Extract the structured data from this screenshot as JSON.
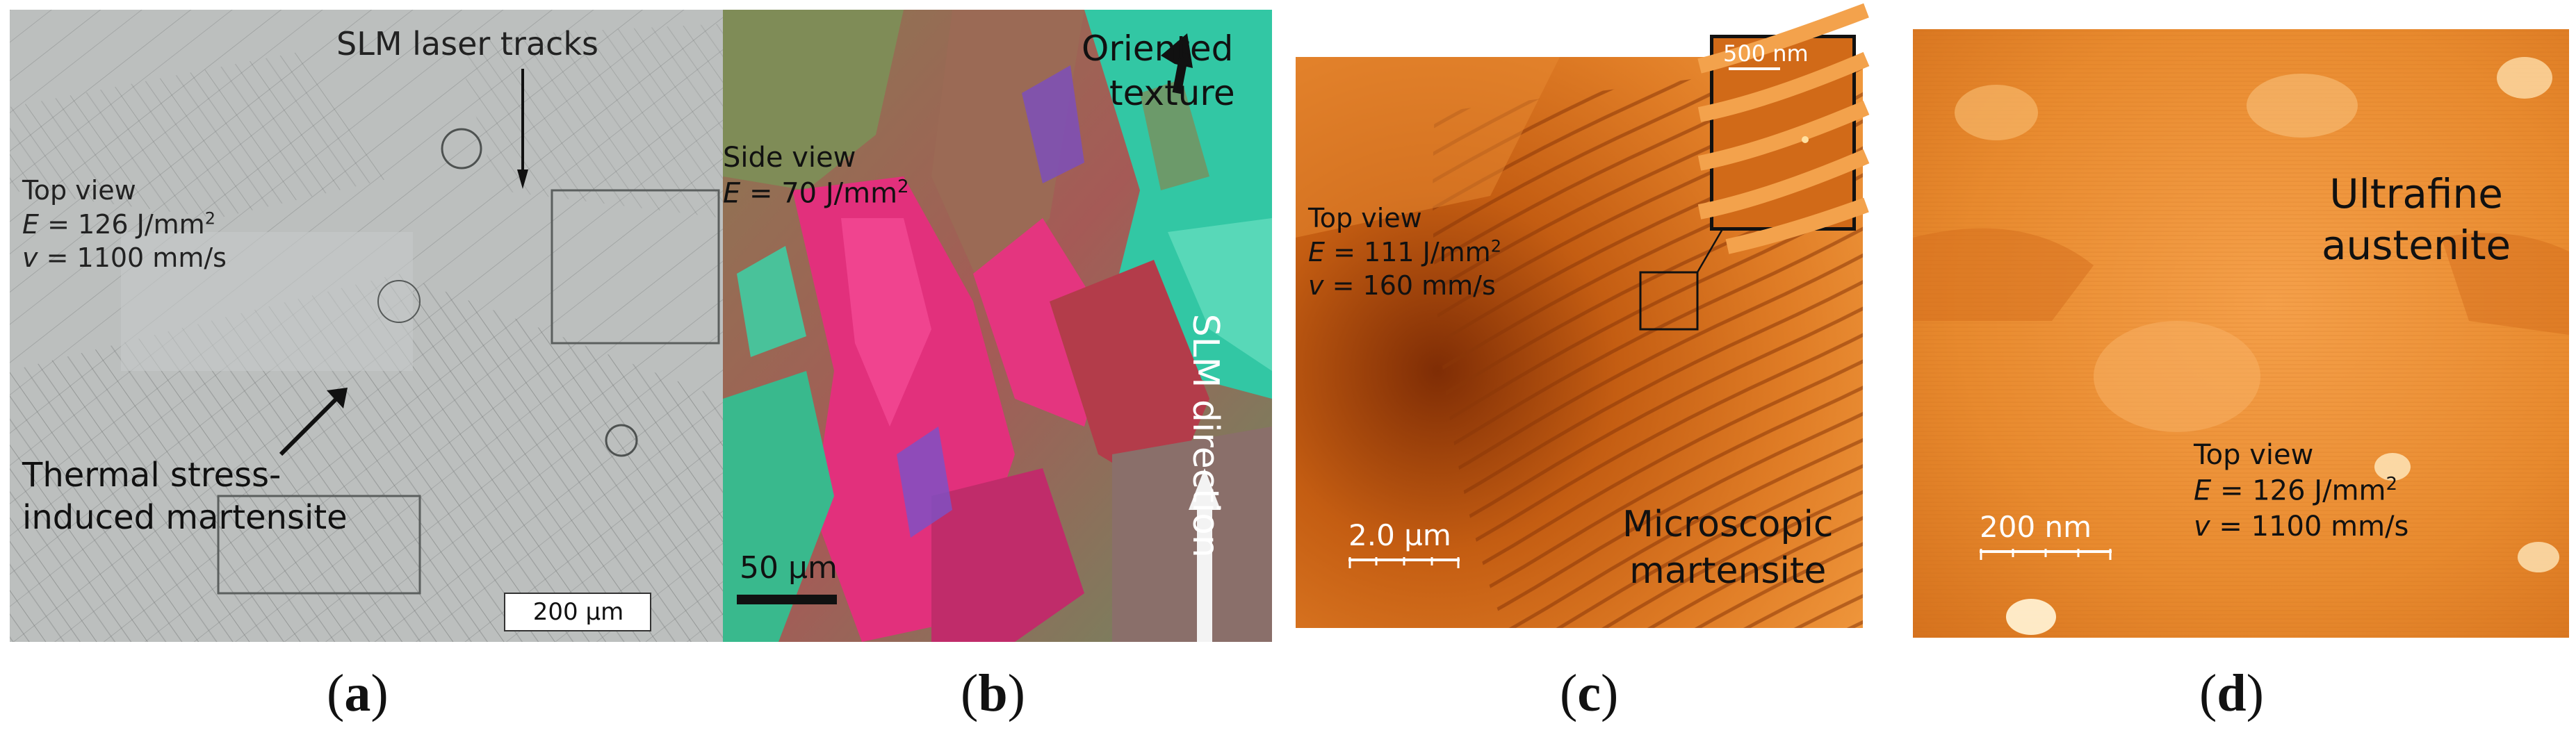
{
  "panels": {
    "a": {
      "caption_letter": "a",
      "annotation_tracks": "SLM laser tracks",
      "view": "Top view",
      "energy_value": "= 126 J/mm",
      "velocity_value": "= 1100 mm/s",
      "martensite_line1": "Thermal stress-",
      "martensite_line2": "induced martensite",
      "scale_bar": "200 µm"
    },
    "b": {
      "caption_letter": "b",
      "texture_line1": "Oriented",
      "texture_line2": "texture",
      "view": "Side view",
      "energy_value": "= 70 J/mm",
      "scale_bar": "50 µm",
      "direction": "SLM direction"
    },
    "c": {
      "caption_letter": "c",
      "view": "Top view",
      "energy_value": "= 111 J/mm",
      "velocity_value": "= 160 mm/s",
      "inset_scale": "500 nm",
      "scale_bar": "2.0 µm",
      "phase_line1": "Microscopic",
      "phase_line2": "martensite"
    },
    "d": {
      "caption_letter": "d",
      "phase_line1": "Ultrafine",
      "phase_line2": "austenite",
      "view": "Top view",
      "energy_value": "= 126 J/mm",
      "velocity_value": "= 1100 mm/s",
      "scale_bar": "200 nm"
    }
  },
  "symbols": {
    "energy": "E",
    "velocity": "v",
    "superscript": "2",
    "open_paren": "(",
    "close_paren": ")"
  },
  "colors": {
    "micrograph_gray": "#b9bcbb",
    "ebsd_green": "#2fc9a6",
    "ebsd_magenta": "#e0307a",
    "afm_dark": "#b04a08",
    "afm_light": "#f29a3c"
  }
}
